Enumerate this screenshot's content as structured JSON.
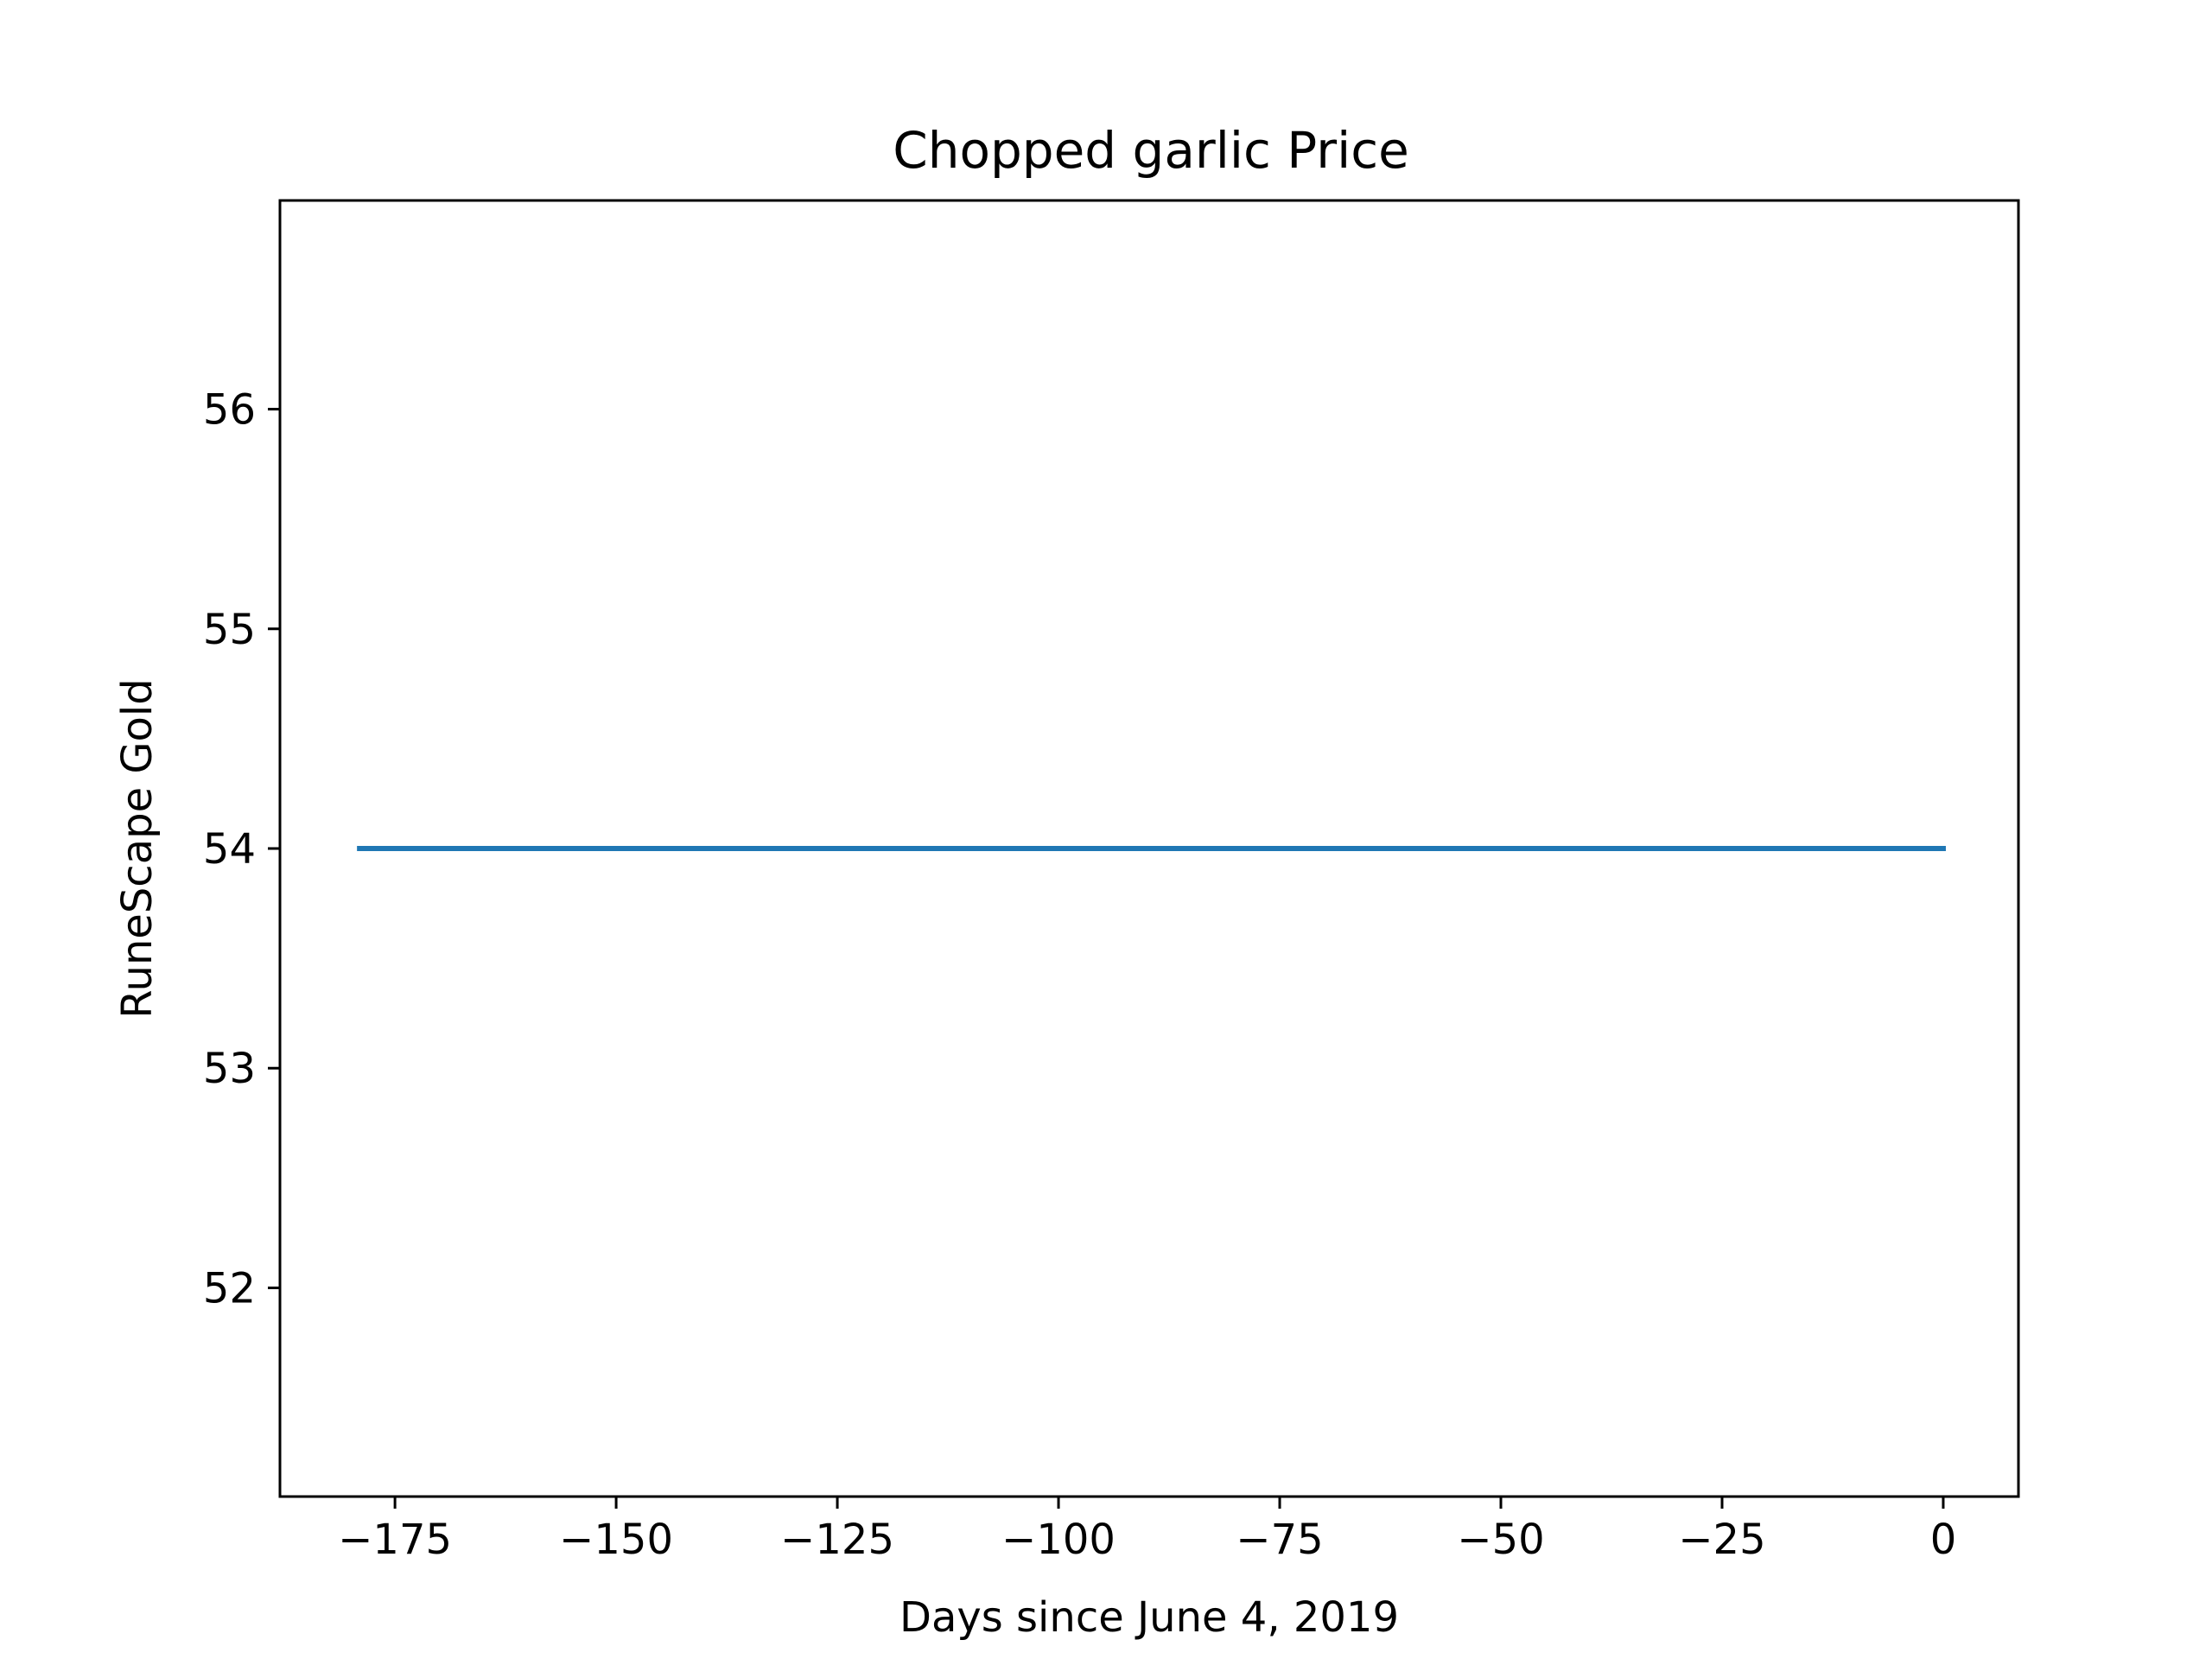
{
  "chart_data": {
    "type": "line",
    "title": "Chopped garlic Price",
    "xlabel": "Days since June 4, 2019",
    "ylabel": "RuneScape Gold",
    "xlim": [
      -188,
      8.5
    ],
    "ylim": [
      51.05,
      56.95
    ],
    "x_ticks": [
      -175,
      -150,
      -125,
      -100,
      -75,
      -50,
      -25,
      0
    ],
    "x_tick_labels": [
      "−175",
      "−150",
      "−125",
      "−100",
      "−75",
      "−50",
      "−25",
      "0"
    ],
    "y_ticks": [
      52,
      53,
      54,
      55,
      56
    ],
    "y_tick_labels": [
      "52",
      "53",
      "54",
      "55",
      "56"
    ],
    "grid": false,
    "series": [
      {
        "color": "#1f77b4",
        "x": [
          -179,
          0
        ],
        "y": [
          54,
          54
        ]
      }
    ]
  }
}
